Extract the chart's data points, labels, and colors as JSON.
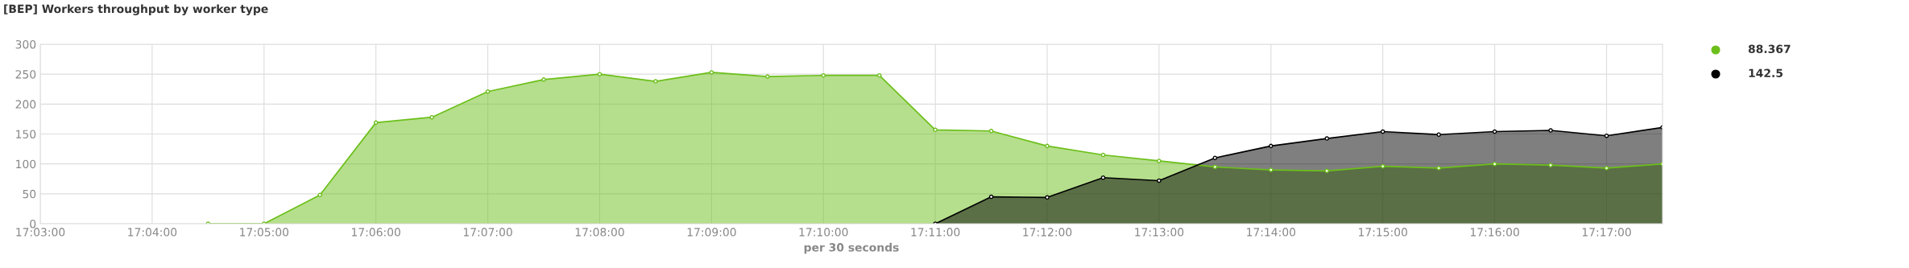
{
  "chart_data": {
    "type": "area",
    "title": "[BEP] Workers throughput by worker type",
    "xlabel": "per 30 seconds",
    "xlim": [
      17.05,
      17.291667
    ],
    "xticks": [
      {
        "value": 17.05,
        "label": "17:03:00"
      },
      {
        "value": 17.066667,
        "label": "17:04:00"
      },
      {
        "value": 17.083333,
        "label": "17:05:00"
      },
      {
        "value": 17.1,
        "label": "17:06:00"
      },
      {
        "value": 17.116667,
        "label": "17:07:00"
      },
      {
        "value": 17.133333,
        "label": "17:08:00"
      },
      {
        "value": 17.15,
        "label": "17:09:00"
      },
      {
        "value": 17.166667,
        "label": "17:10:00"
      },
      {
        "value": 17.183333,
        "label": "17:11:00"
      },
      {
        "value": 17.2,
        "label": "17:12:00"
      },
      {
        "value": 17.216667,
        "label": "17:13:00"
      },
      {
        "value": 17.233333,
        "label": "17:14:00"
      },
      {
        "value": 17.25,
        "label": "17:15:00"
      },
      {
        "value": 17.266667,
        "label": "17:16:00"
      },
      {
        "value": 17.283333,
        "label": "17:17:00"
      }
    ],
    "ylim": [
      0,
      300
    ],
    "yticks": [
      0,
      50,
      100,
      150,
      200,
      250,
      300
    ],
    "grid": true,
    "marker": "circle",
    "line_style": "solid",
    "series": [
      {
        "color": "#6cbf1a",
        "x": [
          17.075,
          17.083333,
          17.091667,
          17.1,
          17.108333,
          17.116667,
          17.125,
          17.133333,
          17.141667,
          17.15,
          17.158333,
          17.166667,
          17.175,
          17.183333,
          17.191667,
          17.2,
          17.208333,
          17.216667,
          17.225,
          17.233333,
          17.241667,
          17.25,
          17.258333,
          17.266667,
          17.275,
          17.283333,
          17.291667
        ],
        "values": [
          0,
          0,
          48,
          169,
          178,
          221,
          241,
          250,
          238,
          253,
          246,
          248,
          248,
          157,
          155,
          130,
          115,
          105,
          95,
          90,
          88.367,
          96,
          93,
          100,
          98,
          93,
          100
        ]
      },
      {
        "color": "#000000",
        "x": [
          17.183333,
          17.191667,
          17.2,
          17.208333,
          17.216667,
          17.225,
          17.233333,
          17.241667,
          17.25,
          17.258333,
          17.266667,
          17.275,
          17.283333,
          17.291667
        ],
        "values": [
          0,
          45,
          44,
          77,
          72,
          110,
          130,
          142.5,
          154,
          149,
          154,
          156,
          147,
          161
        ]
      }
    ],
    "annotations": [
      "88.367",
      "142.5"
    ]
  }
}
